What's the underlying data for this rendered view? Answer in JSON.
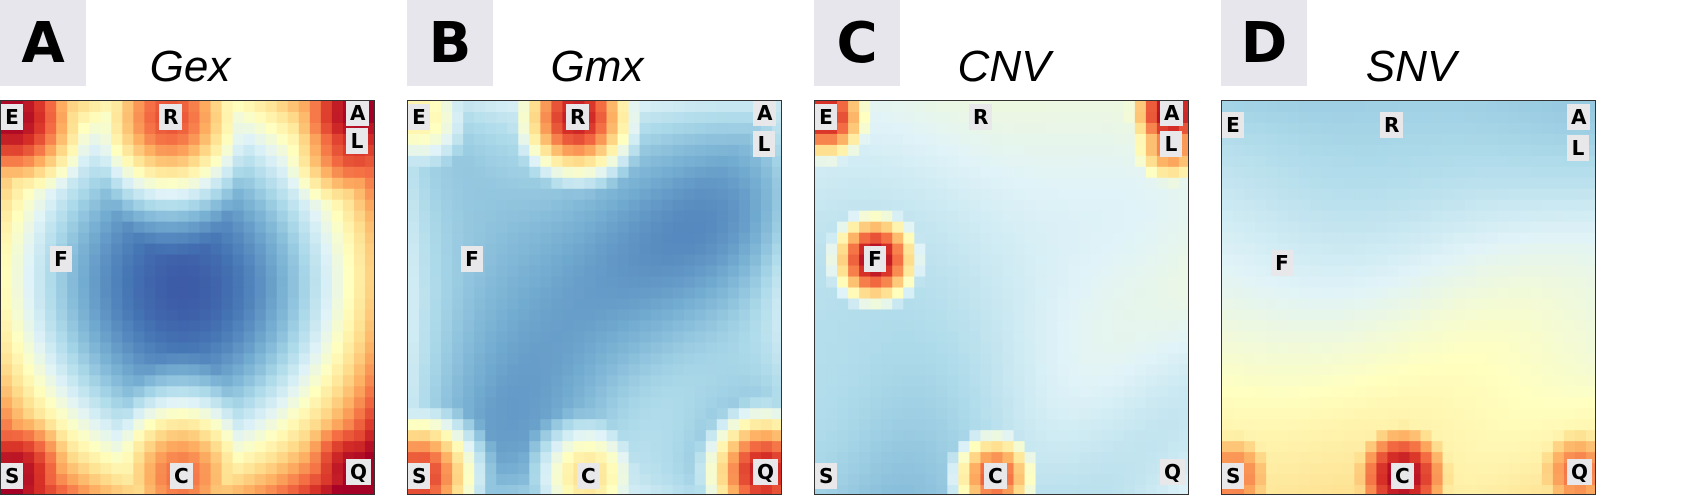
{
  "chart_data": [
    {
      "type": "heatmap",
      "panel_label": "A",
      "title": "Gex",
      "colormap": "RdYlBu_r",
      "vertex_labels": [
        "E",
        "R",
        "A",
        "L",
        "F",
        "S",
        "C",
        "Q"
      ],
      "hotspots": [
        {
          "label": "E",
          "value": 1.0
        },
        {
          "label": "R",
          "value": 0.85
        },
        {
          "label": "A",
          "value": 1.0
        },
        {
          "label": "L",
          "value": 0.9
        },
        {
          "label": "S",
          "value": 1.0
        },
        {
          "label": "C",
          "value": 0.8
        },
        {
          "label": "Q",
          "value": 1.0
        }
      ],
      "center_low": {
        "label": "F",
        "value": 0.0
      }
    },
    {
      "type": "heatmap",
      "panel_label": "B",
      "title": "Gmx",
      "colormap": "RdYlBu_r",
      "vertex_labels": [
        "E",
        "R",
        "A",
        "L",
        "F",
        "S",
        "C",
        "Q"
      ],
      "hotspots": [
        {
          "label": "R",
          "value": 0.95
        },
        {
          "label": "S",
          "value": 0.9
        },
        {
          "label": "C",
          "value": 0.6
        },
        {
          "label": "Q",
          "value": 0.95
        },
        {
          "label": "E",
          "value": 0.55
        }
      ]
    },
    {
      "type": "heatmap",
      "panel_label": "C",
      "title": "CNV",
      "colormap": "RdYlBu_r",
      "vertex_labels": [
        "E",
        "R",
        "A",
        "L",
        "F",
        "S",
        "C",
        "Q"
      ],
      "hotspots": [
        {
          "label": "E",
          "value": 0.95
        },
        {
          "label": "A",
          "value": 1.0
        },
        {
          "label": "L",
          "value": 0.8
        },
        {
          "label": "F",
          "value": 1.0
        },
        {
          "label": "C",
          "value": 0.85
        }
      ]
    },
    {
      "type": "heatmap",
      "panel_label": "D",
      "title": "SNV",
      "colormap": "RdYlBu_r",
      "vertex_labels": [
        "E",
        "R",
        "A",
        "L",
        "F",
        "S",
        "C",
        "Q"
      ],
      "hotspots": [
        {
          "label": "S",
          "value": 0.8
        },
        {
          "label": "C",
          "value": 1.0
        },
        {
          "label": "Q",
          "value": 0.8
        }
      ]
    }
  ]
}
